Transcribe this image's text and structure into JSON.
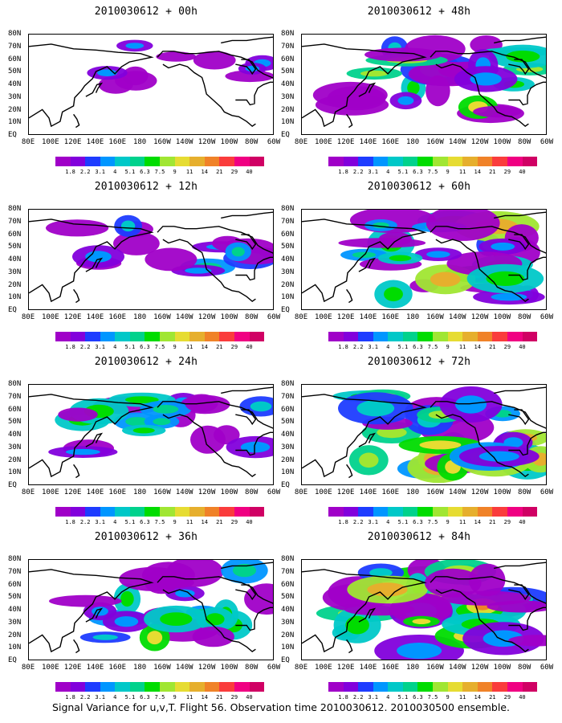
{
  "caption": "Signal Variance for u,v,T. Flight 56. Observation time 2010030612. 2010030500 ensemble.",
  "panels": [
    {
      "title": "2010030612 + 00h",
      "intensity": 0.15
    },
    {
      "title": "2010030612 + 48h",
      "intensity": 0.75
    },
    {
      "title": "2010030612 + 12h",
      "intensity": 0.35
    },
    {
      "title": "2010030612 + 60h",
      "intensity": 0.85
    },
    {
      "title": "2010030612 + 24h",
      "intensity": 0.5
    },
    {
      "title": "2010030612 + 72h",
      "intensity": 0.9
    },
    {
      "title": "2010030612 + 36h",
      "intensity": 0.65
    },
    {
      "title": "2010030612 + 84h",
      "intensity": 1.0
    }
  ],
  "lat_labels": [
    "80N",
    "70N",
    "60N",
    "50N",
    "40N",
    "30N",
    "20N",
    "10N",
    "EQ"
  ],
  "lon_labels": [
    "80E",
    "100E",
    "120E",
    "140E",
    "160E",
    "180",
    "160W",
    "140W",
    "120W",
    "100W",
    "80W",
    "60W"
  ],
  "legend": {
    "labels": [
      "1.8",
      "2.2",
      "3.1",
      "4",
      "5.1",
      "6.3",
      "7.5",
      "9",
      "11",
      "14",
      "21",
      "29",
      "40"
    ],
    "colors": [
      "#a000c8",
      "#8200dc",
      "#1e3cff",
      "#0096ff",
      "#00c8c8",
      "#00d28c",
      "#00dc00",
      "#a0e632",
      "#e6dc32",
      "#e6af2d",
      "#f08228",
      "#fa3c3c",
      "#f00082"
    ]
  }
}
